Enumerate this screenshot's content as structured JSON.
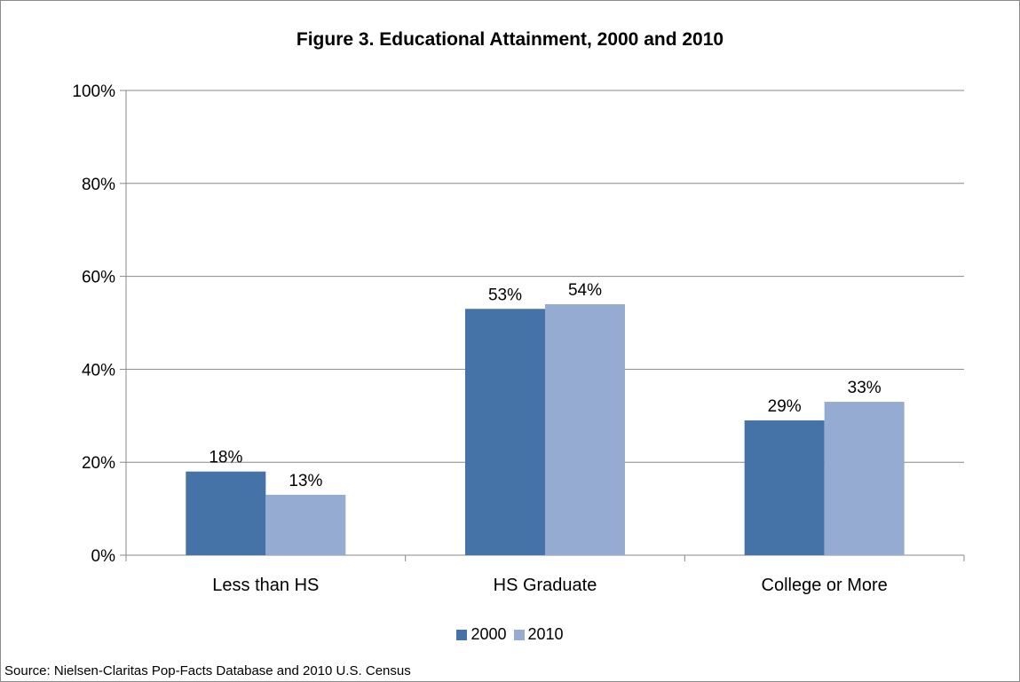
{
  "chart_data": {
    "type": "bar",
    "title": "Figure 3. Educational Attainment, 2000 and 2010",
    "categories": [
      "Less than HS",
      "HS Graduate",
      "College or More"
    ],
    "series": [
      {
        "name": "2000",
        "values": [
          18,
          53,
          29
        ],
        "labels": [
          "18%",
          "53%",
          "29%"
        ],
        "color": "#4572a7"
      },
      {
        "name": "2010",
        "values": [
          13,
          54,
          33
        ],
        "labels": [
          "13%",
          "54%",
          "33%"
        ],
        "color": "#95abd1"
      }
    ],
    "y_ticks": [
      0,
      20,
      40,
      60,
      80,
      100
    ],
    "y_tick_labels": [
      "0%",
      "20%",
      "40%",
      "60%",
      "80%",
      "100%"
    ],
    "ylim": [
      0,
      100
    ],
    "grid": true,
    "legend_position": "bottom",
    "xlabel": "",
    "ylabel": ""
  },
  "source_note": "Source: Nielsen-Claritas Pop-Facts Database and 2010 U.S. Census"
}
